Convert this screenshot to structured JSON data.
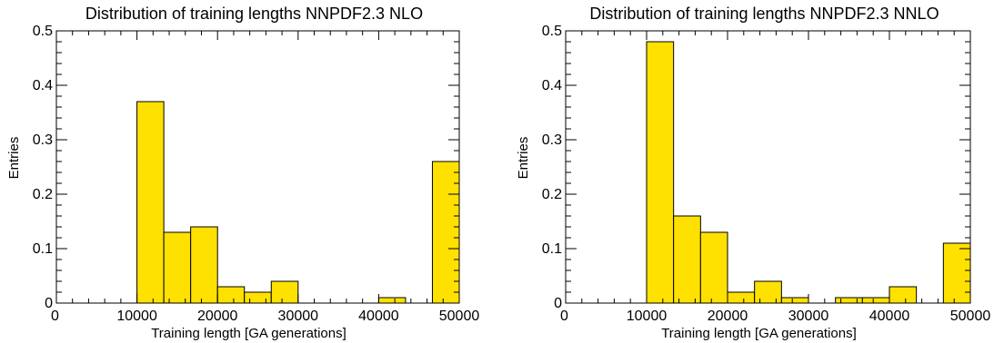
{
  "chart_data": [
    {
      "type": "bar",
      "title": "Distribution of training lengths NNPDF2.3 NLO",
      "xlabel": "Training length [GA generations]",
      "ylabel": "Entries",
      "xlim": [
        0,
        50000
      ],
      "ylim": [
        0,
        0.5
      ],
      "bin_width": 3333.33,
      "x_ticks": [
        "0",
        "10000",
        "20000",
        "30000",
        "40000",
        "50000"
      ],
      "y_ticks": [
        "0",
        "0.1",
        "0.2",
        "0.3",
        "0.4",
        "0.5"
      ],
      "bins": [
        {
          "x_low": 10000,
          "x_high": 13333,
          "value": 0.37
        },
        {
          "x_low": 13333,
          "x_high": 16667,
          "value": 0.13
        },
        {
          "x_low": 16667,
          "x_high": 20000,
          "value": 0.14
        },
        {
          "x_low": 20000,
          "x_high": 23333,
          "value": 0.03
        },
        {
          "x_low": 23333,
          "x_high": 26667,
          "value": 0.02
        },
        {
          "x_low": 26667,
          "x_high": 30000,
          "value": 0.04
        },
        {
          "x_low": 40000,
          "x_high": 43333,
          "value": 0.01
        },
        {
          "x_low": 46667,
          "x_high": 50000,
          "value": 0.26
        }
      ],
      "bar_color": "#ffe100"
    },
    {
      "type": "bar",
      "title": "Distribution of training lengths NNPDF2.3 NNLO",
      "xlabel": "Training length [GA generations]",
      "ylabel": "Entries",
      "xlim": [
        0,
        50000
      ],
      "ylim": [
        0,
        0.5
      ],
      "bin_width": 3333.33,
      "x_ticks": [
        "0",
        "10000",
        "20000",
        "30000",
        "40000",
        "50000"
      ],
      "y_ticks": [
        "0",
        "0.1",
        "0.2",
        "0.3",
        "0.4",
        "0.5"
      ],
      "bins": [
        {
          "x_low": 10000,
          "x_high": 13333,
          "value": 0.48
        },
        {
          "x_low": 13333,
          "x_high": 16667,
          "value": 0.16
        },
        {
          "x_low": 16667,
          "x_high": 20000,
          "value": 0.13
        },
        {
          "x_low": 20000,
          "x_high": 23333,
          "value": 0.02
        },
        {
          "x_low": 23333,
          "x_high": 26667,
          "value": 0.04
        },
        {
          "x_low": 26667,
          "x_high": 30000,
          "value": 0.01
        },
        {
          "x_low": 33333,
          "x_high": 36667,
          "value": 0.01
        },
        {
          "x_low": 36667,
          "x_high": 40000,
          "value": 0.01
        },
        {
          "x_low": 40000,
          "x_high": 43333,
          "value": 0.03
        },
        {
          "x_low": 46667,
          "x_high": 50000,
          "value": 0.11
        }
      ],
      "bar_color": "#ffe100"
    }
  ]
}
